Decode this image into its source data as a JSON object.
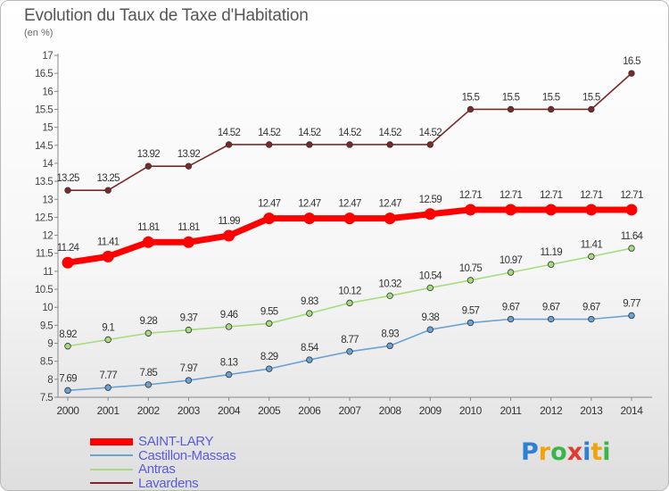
{
  "header": {
    "title": "Evolution du Taux de Taxe d'Habitation",
    "subtitle": "(en %)"
  },
  "chart_data": {
    "type": "line",
    "x": [
      2000,
      2001,
      2002,
      2003,
      2004,
      2005,
      2006,
      2007,
      2008,
      2009,
      2010,
      2011,
      2012,
      2013,
      2014
    ],
    "ylim": [
      7.5,
      17
    ],
    "yticks": [
      7.5,
      8,
      8.5,
      9,
      9.5,
      10,
      10.5,
      11,
      11.5,
      12,
      12.5,
      13,
      13.5,
      14,
      14.5,
      15,
      15.5,
      16,
      16.5,
      17
    ],
    "grid": false,
    "legend_position": "bottom-left",
    "series": [
      {
        "name": "SAINT-LARY",
        "color": "#ff0000",
        "values": [
          11.24,
          11.41,
          11.81,
          11.81,
          11.99,
          12.47,
          12.47,
          12.47,
          12.47,
          12.59,
          12.71,
          12.71,
          12.71,
          12.71,
          12.71
        ]
      },
      {
        "name": "Castillon-Massas",
        "color": "#6aa2d4",
        "values": [
          7.69,
          7.77,
          7.85,
          7.97,
          8.13,
          8.29,
          8.54,
          8.77,
          8.93,
          9.38,
          9.57,
          9.67,
          9.67,
          9.67,
          9.77
        ]
      },
      {
        "name": "Antras",
        "color": "#a6dc7c",
        "values": [
          8.92,
          9.1,
          9.28,
          9.37,
          9.46,
          9.55,
          9.83,
          10.12,
          10.32,
          10.54,
          10.75,
          10.97,
          11.19,
          11.41,
          11.64
        ]
      },
      {
        "name": "Lavardens",
        "color": "#7a2a2a",
        "values": [
          13.25,
          13.25,
          13.92,
          13.92,
          14.52,
          14.52,
          14.52,
          14.52,
          14.52,
          14.52,
          15.5,
          15.5,
          15.5,
          15.5,
          16.5
        ]
      }
    ]
  },
  "logo": {
    "letters": [
      "P",
      "r",
      "o",
      "x",
      "i",
      "t",
      "i"
    ],
    "colors": [
      "#2f7fd3",
      "#f0a30a",
      "#3bb54a",
      "#e23a2f",
      "#2f7fd3",
      "#f0a30a",
      "#3bb54a"
    ]
  }
}
